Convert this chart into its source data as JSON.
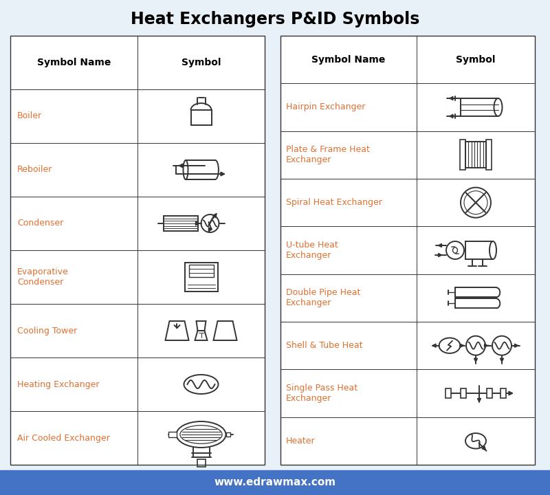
{
  "title": "Heat Exchangers P&ID Symbols",
  "title_fontsize": 17,
  "title_fontweight": "bold",
  "bg_color": "#e8f0f8",
  "footer_bg": "#4472c4",
  "footer_text": "www.edrawmax.com",
  "footer_text_color": "#ffffff",
  "left_rows": [
    "Boiler",
    "Reboiler",
    "Condenser",
    "Evaporative\nCondenser",
    "Cooling Tower",
    "Heating Exchanger",
    "Air Cooled Exchanger"
  ],
  "right_rows": [
    "Hairpin Exchanger",
    "Plate & Frame Heat\nExchanger",
    "Spiral Heat Exchanger",
    "U-tube Heat\nExchanger",
    "Double Pipe Heat\nExchanger",
    "Shell & Tube Heat",
    "Single Pass Heat\nExchanger",
    "Heater"
  ],
  "name_color": "#e07030",
  "line_color": "#333333",
  "table_bg": "#ffffff",
  "header_bg": "#f0f0f0"
}
